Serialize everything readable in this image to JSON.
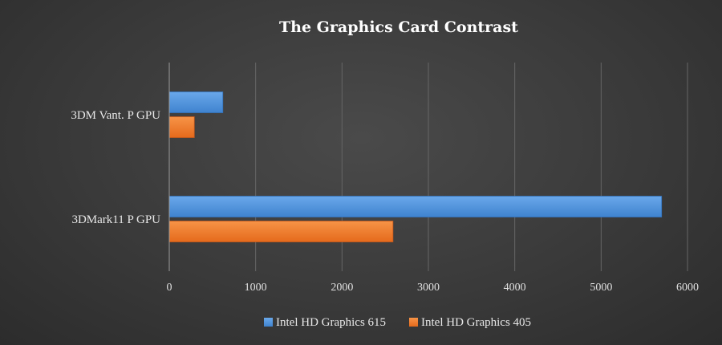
{
  "chart_data": {
    "type": "bar",
    "orientation": "horizontal",
    "title": "The Graphics Card Contrast",
    "categories": [
      "3DM Vant. P GPU",
      "3DMark11 P GPU"
    ],
    "series": [
      {
        "name": "Intel HD Graphics 615",
        "values": [
          620,
          5700
        ]
      },
      {
        "name": "Intel HD Graphics 405",
        "values": [
          290,
          2590
        ]
      }
    ],
    "xlim": [
      0,
      6000
    ],
    "xticks": [
      "0",
      "1000",
      "2000",
      "3000",
      "4000",
      "5000",
      "6000"
    ],
    "grid": true,
    "legend": "bottom",
    "colors": {
      "series_0": "#4a90d9",
      "series_1": "#f07a2a"
    }
  }
}
